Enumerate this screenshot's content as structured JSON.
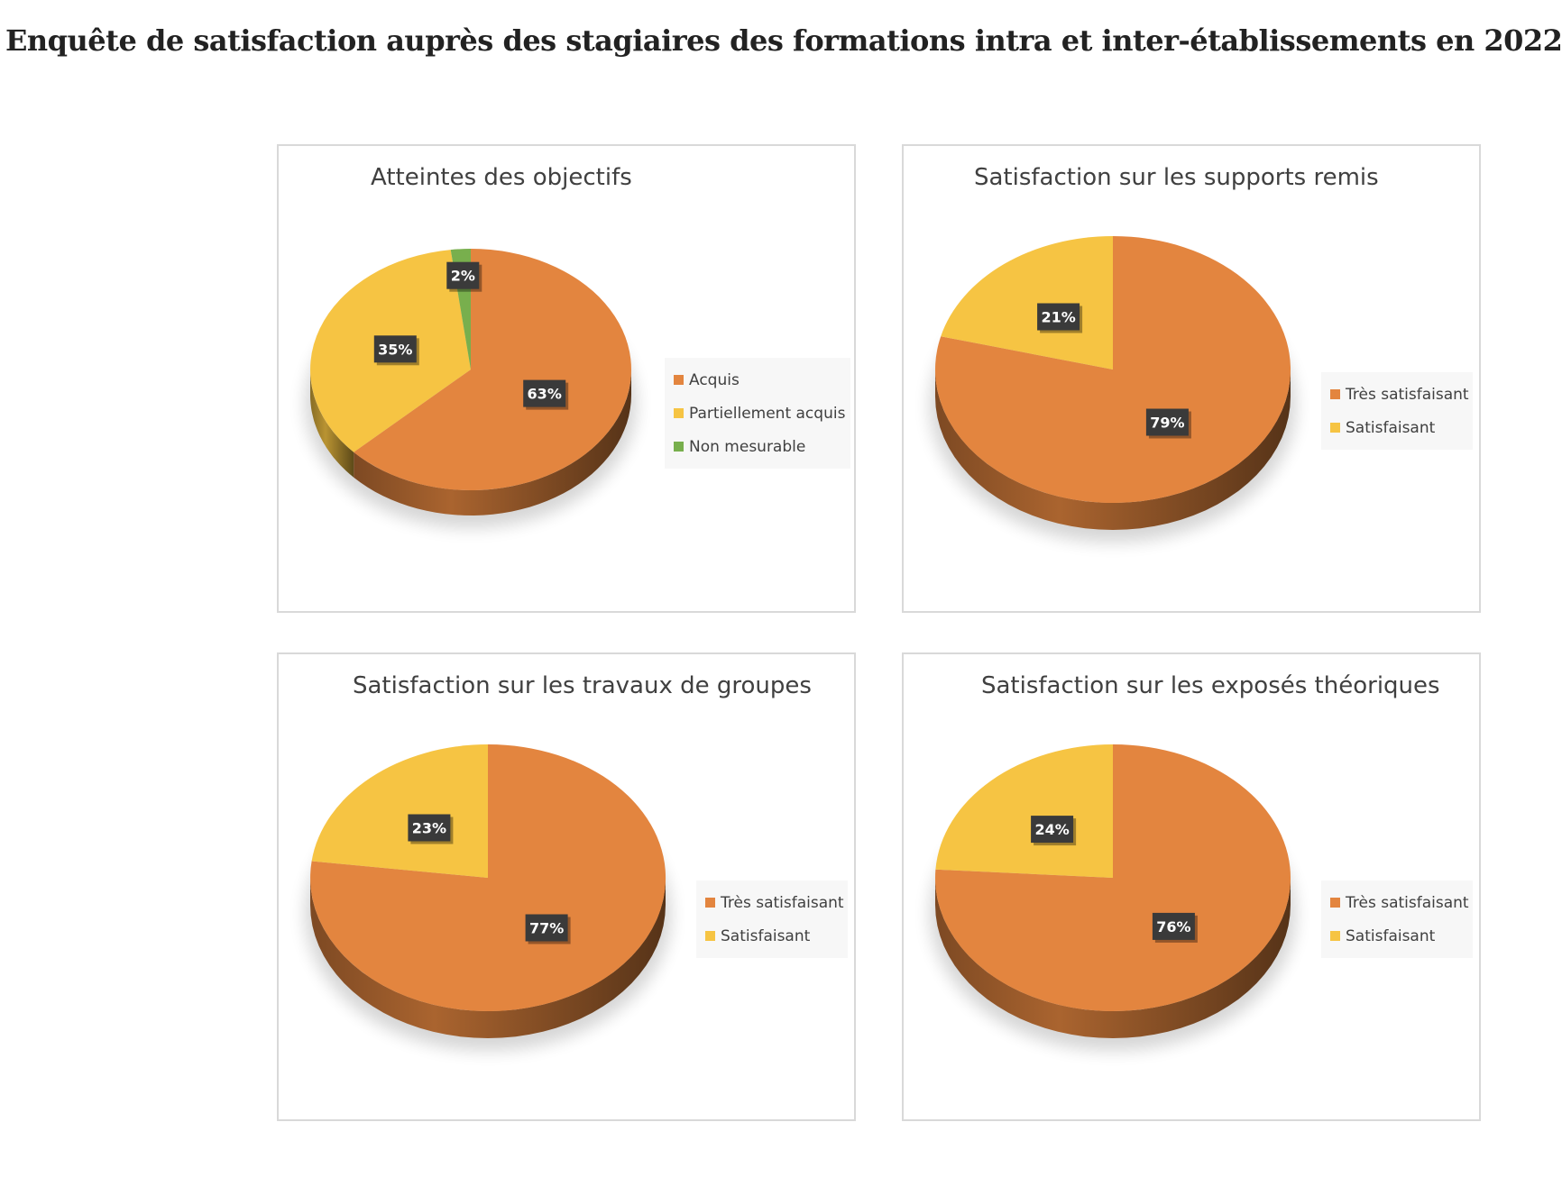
{
  "page": {
    "title": "Enquête de satisfaction auprès des stagiaires des formations intra et inter-établissements en 2022"
  },
  "colors": {
    "orange": "#E3853F",
    "yellow": "#F6C443",
    "green": "#78AF4D"
  },
  "chart_data": [
    {
      "type": "pie",
      "title": "Atteintes des objectifs",
      "categories": [
        "Acquis",
        "Partiellement acquis",
        "Non mesurable"
      ],
      "values": [
        63,
        35,
        2
      ],
      "labels": [
        "63%",
        "35%",
        "2%"
      ],
      "colors": [
        "#E3853F",
        "#F6C443",
        "#78AF4D"
      ],
      "legend": "right"
    },
    {
      "type": "pie",
      "title": "Satisfaction sur les supports remis",
      "categories": [
        "Très satisfaisant",
        "Satisfaisant"
      ],
      "values": [
        79,
        21
      ],
      "labels": [
        "79%",
        "21%"
      ],
      "colors": [
        "#E3853F",
        "#F6C443"
      ],
      "legend": "right"
    },
    {
      "type": "pie",
      "title": "Satisfaction sur les travaux de groupes",
      "categories": [
        "Très satisfaisant",
        "Satisfaisant"
      ],
      "values": [
        77,
        23
      ],
      "labels": [
        "77%",
        "23%"
      ],
      "colors": [
        "#E3853F",
        "#F6C443"
      ],
      "legend": "right"
    },
    {
      "type": "pie",
      "title": "Satisfaction sur les exposés théoriques",
      "categories": [
        "Très satisfaisant",
        "Satisfaisant"
      ],
      "values": [
        76,
        24
      ],
      "labels": [
        "76%",
        "24%"
      ],
      "colors": [
        "#E3853F",
        "#F6C443"
      ],
      "legend": "right"
    }
  ]
}
